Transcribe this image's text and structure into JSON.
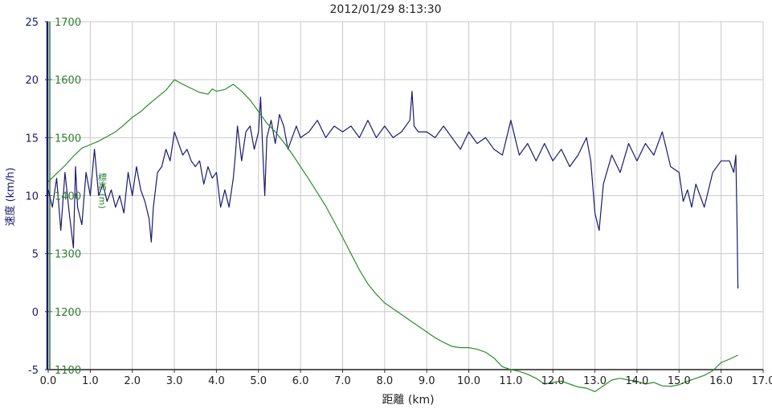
{
  "chart_data": {
    "type": "line",
    "title": "2012/01/29 8:13:30",
    "xlabel": "距離 (km)",
    "ylabel_left": "速度 (km/h)",
    "ylabel_right_fragment": "標高 (m)",
    "xlim": [
      0,
      17
    ],
    "ylim_left": [
      -5,
      25
    ],
    "ylim_right": [
      1100,
      1700
    ],
    "grid": true,
    "x_ticks": [
      "0.0",
      "1.0",
      "2.0",
      "3.0",
      "4.0",
      "5.0",
      "6.0",
      "7.0",
      "8.0",
      "9.0",
      "10.0",
      "11.0",
      "12.0",
      "13.0",
      "14.0",
      "15.0",
      "16.0",
      "17.0"
    ],
    "y_ticks_left": [
      "25",
      "20",
      "15",
      "10",
      "5",
      "0",
      "-5"
    ],
    "y_ticks_right": [
      "1700",
      "1600",
      "1500",
      "1400",
      "1300",
      "1200",
      "1100"
    ],
    "colors": {
      "speed": "#1a1a6e",
      "elevation": "#2e8b2e",
      "grid": "#c8c8c8",
      "left_axis": "#1a1a6e",
      "right_axis": "#2e7d32"
    },
    "series": [
      {
        "name": "速度",
        "axis": "left",
        "x": [
          0.0,
          0.1,
          0.2,
          0.3,
          0.4,
          0.5,
          0.6,
          0.65,
          0.7,
          0.8,
          0.9,
          1.0,
          1.1,
          1.2,
          1.3,
          1.4,
          1.5,
          1.6,
          1.7,
          1.8,
          1.9,
          2.0,
          2.1,
          2.2,
          2.3,
          2.4,
          2.45,
          2.5,
          2.6,
          2.7,
          2.8,
          2.9,
          3.0,
          3.1,
          3.2,
          3.3,
          3.4,
          3.5,
          3.6,
          3.7,
          3.8,
          3.9,
          4.0,
          4.1,
          4.2,
          4.3,
          4.4,
          4.45,
          4.5,
          4.6,
          4.7,
          4.8,
          4.9,
          5.0,
          5.05,
          5.1,
          5.15,
          5.2,
          5.3,
          5.4,
          5.5,
          5.6,
          5.7,
          5.8,
          5.9,
          6.0,
          6.2,
          6.4,
          6.6,
          6.8,
          7.0,
          7.2,
          7.4,
          7.6,
          7.8,
          8.0,
          8.2,
          8.4,
          8.6,
          8.65,
          8.7,
          8.8,
          9.0,
          9.2,
          9.4,
          9.6,
          9.8,
          10.0,
          10.2,
          10.4,
          10.6,
          10.8,
          11.0,
          11.1,
          11.2,
          11.4,
          11.6,
          11.8,
          12.0,
          12.2,
          12.4,
          12.6,
          12.8,
          12.9,
          13.0,
          13.1,
          13.2,
          13.4,
          13.6,
          13.8,
          14.0,
          14.2,
          14.4,
          14.6,
          14.8,
          15.0,
          15.1,
          15.2,
          15.3,
          15.4,
          15.5,
          15.6,
          15.8,
          16.0,
          16.2,
          16.3,
          16.35,
          16.38,
          16.4
        ],
        "values": [
          10.5,
          9.0,
          11.5,
          7.0,
          12.0,
          8.5,
          5.5,
          12.5,
          9.0,
          7.5,
          12.0,
          10.0,
          14.0,
          10.0,
          11.0,
          9.5,
          10.5,
          9.0,
          10.0,
          8.5,
          12.0,
          10.0,
          12.5,
          10.5,
          9.5,
          8.0,
          6.0,
          9.0,
          12.0,
          12.5,
          14.0,
          13.0,
          15.5,
          14.5,
          13.5,
          14.0,
          13.0,
          12.5,
          13.0,
          11.0,
          12.5,
          11.5,
          12.0,
          9.0,
          10.5,
          9.0,
          11.5,
          13.5,
          16.0,
          13.0,
          15.5,
          16.0,
          14.0,
          15.5,
          18.5,
          14.0,
          10.0,
          15.0,
          16.5,
          14.5,
          17.0,
          16.0,
          14.0,
          15.0,
          16.0,
          15.0,
          15.5,
          16.5,
          15.0,
          16.0,
          15.5,
          16.0,
          15.0,
          16.5,
          15.0,
          16.0,
          15.0,
          15.5,
          16.5,
          19.0,
          16.0,
          15.5,
          15.5,
          15.0,
          16.0,
          15.0,
          14.0,
          15.5,
          14.5,
          15.0,
          14.0,
          13.5,
          16.5,
          15.0,
          13.5,
          14.5,
          13.0,
          14.5,
          13.0,
          14.0,
          12.5,
          13.5,
          15.0,
          13.0,
          8.5,
          7.0,
          11.0,
          13.5,
          12.0,
          14.5,
          13.0,
          14.5,
          13.5,
          15.5,
          12.5,
          12.0,
          9.5,
          10.5,
          9.0,
          11.0,
          10.0,
          9.0,
          12.0,
          13.0,
          13.0,
          12.0,
          13.5,
          7.5,
          2.0
        ]
      },
      {
        "name": "標高",
        "axis": "right",
        "x": [
          0.0,
          0.2,
          0.4,
          0.6,
          0.8,
          1.0,
          1.2,
          1.4,
          1.6,
          1.8,
          2.0,
          2.2,
          2.4,
          2.6,
          2.8,
          3.0,
          3.2,
          3.4,
          3.6,
          3.8,
          3.9,
          4.0,
          4.2,
          4.4,
          4.6,
          4.8,
          5.0,
          5.2,
          5.4,
          5.6,
          5.8,
          6.0,
          6.2,
          6.4,
          6.6,
          6.8,
          7.0,
          7.2,
          7.4,
          7.6,
          7.8,
          8.0,
          8.2,
          8.4,
          8.6,
          8.8,
          9.0,
          9.2,
          9.4,
          9.6,
          9.8,
          10.0,
          10.2,
          10.4,
          10.6,
          10.8,
          11.0,
          11.2,
          11.4,
          11.6,
          11.8,
          12.0,
          12.2,
          12.4,
          12.6,
          12.8,
          13.0,
          13.2,
          13.4,
          13.6,
          13.8,
          14.0,
          14.2,
          14.4,
          14.6,
          14.8,
          15.0,
          15.2,
          15.4,
          15.6,
          15.8,
          16.0,
          16.2,
          16.4
        ],
        "values": [
          1424,
          1438,
          1452,
          1468,
          1482,
          1488,
          1494,
          1502,
          1510,
          1522,
          1535,
          1545,
          1558,
          1570,
          1582,
          1600,
          1592,
          1585,
          1578,
          1575,
          1584,
          1580,
          1583,
          1592,
          1580,
          1565,
          1545,
          1525,
          1510,
          1492,
          1472,
          1450,
          1428,
          1405,
          1382,
          1355,
          1328,
          1300,
          1272,
          1248,
          1230,
          1215,
          1205,
          1195,
          1185,
          1175,
          1165,
          1155,
          1147,
          1140,
          1138,
          1138,
          1135,
          1130,
          1120,
          1105,
          1100,
          1097,
          1092,
          1085,
          1075,
          1078,
          1080,
          1075,
          1070,
          1068,
          1062,
          1072,
          1082,
          1085,
          1082,
          1080,
          1075,
          1078,
          1072,
          1071,
          1074,
          1080,
          1085,
          1090,
          1098,
          1112,
          1118,
          1125
        ]
      }
    ]
  }
}
